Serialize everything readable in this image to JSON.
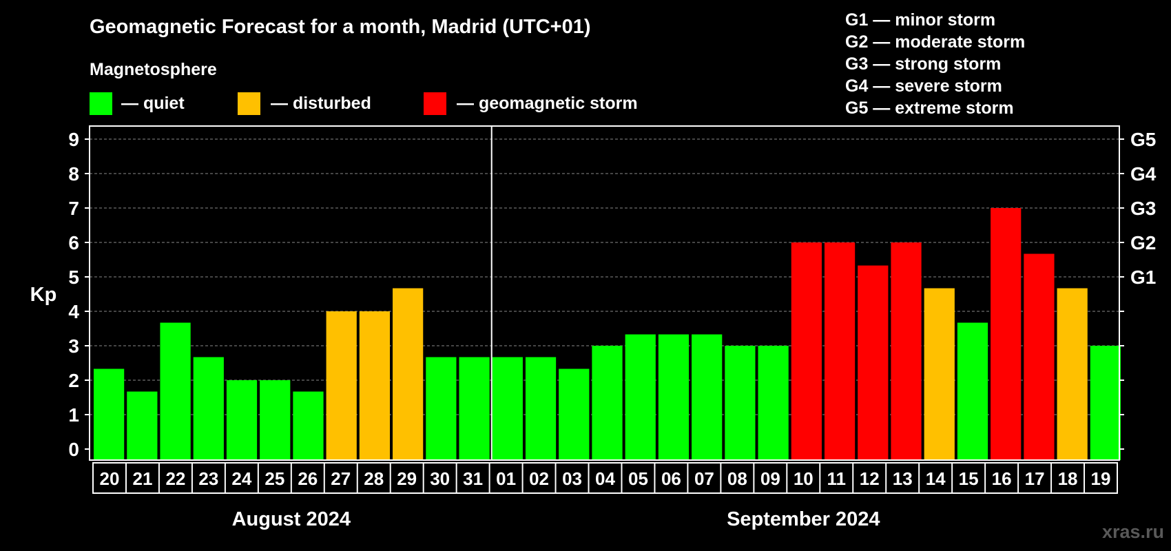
{
  "chart_data": {
    "type": "bar",
    "title": "Geomagnetic Forecast for a month, Madrid (UTC+01)",
    "legend": {
      "heading": "Magnetosphere",
      "placement": "top-left",
      "items": [
        {
          "label": "— quiet",
          "color": "#00ff00"
        },
        {
          "label": "— disturbed",
          "color": "#ffc000"
        },
        {
          "label": "— geomagnetic storm",
          "color": "#ff0000"
        }
      ]
    },
    "storm_scale": [
      "G1 — minor storm",
      "G2 — moderate storm",
      "G3 — strong storm",
      "G4 — severe storm",
      "G5 — extreme storm"
    ],
    "ylabel": "Kp",
    "ylim": [
      0,
      9
    ],
    "yticks": [
      "0",
      "1",
      "2",
      "3",
      "4",
      "5",
      "6",
      "7",
      "8",
      "9"
    ],
    "right_axis_labels": [
      {
        "kp": 5,
        "label": "G1"
      },
      {
        "kp": 6,
        "label": "G2"
      },
      {
        "kp": 7,
        "label": "G3"
      },
      {
        "kp": 8,
        "label": "G4"
      },
      {
        "kp": 9,
        "label": "G5"
      }
    ],
    "grid": true,
    "categories": [
      "20",
      "21",
      "22",
      "23",
      "24",
      "25",
      "26",
      "27",
      "28",
      "29",
      "30",
      "31",
      "01",
      "02",
      "03",
      "04",
      "05",
      "06",
      "07",
      "08",
      "09",
      "10",
      "11",
      "12",
      "13",
      "14",
      "15",
      "16",
      "17",
      "18",
      "19"
    ],
    "values": [
      2.33,
      1.67,
      3.67,
      2.67,
      2.0,
      2.0,
      1.67,
      4.0,
      4.0,
      4.67,
      2.67,
      2.67,
      2.67,
      2.67,
      2.33,
      3.0,
      3.33,
      3.33,
      3.33,
      3.0,
      3.0,
      6.0,
      6.0,
      5.33,
      6.0,
      4.67,
      3.67,
      7.0,
      5.67,
      4.67,
      3.0
    ],
    "status": [
      "quiet",
      "quiet",
      "quiet",
      "quiet",
      "quiet",
      "quiet",
      "quiet",
      "disturbed",
      "disturbed",
      "disturbed",
      "quiet",
      "quiet",
      "quiet",
      "quiet",
      "quiet",
      "quiet",
      "quiet",
      "quiet",
      "quiet",
      "quiet",
      "quiet",
      "storm",
      "storm",
      "storm",
      "storm",
      "disturbed",
      "quiet",
      "storm",
      "storm",
      "disturbed",
      "quiet"
    ],
    "status_colors": {
      "quiet": "#00ff00",
      "disturbed": "#ffc000",
      "storm": "#ff0000"
    },
    "months": [
      {
        "label": "August 2024",
        "count": 12
      },
      {
        "label": "September 2024",
        "count": 19
      }
    ]
  },
  "watermark": "xras.ru"
}
